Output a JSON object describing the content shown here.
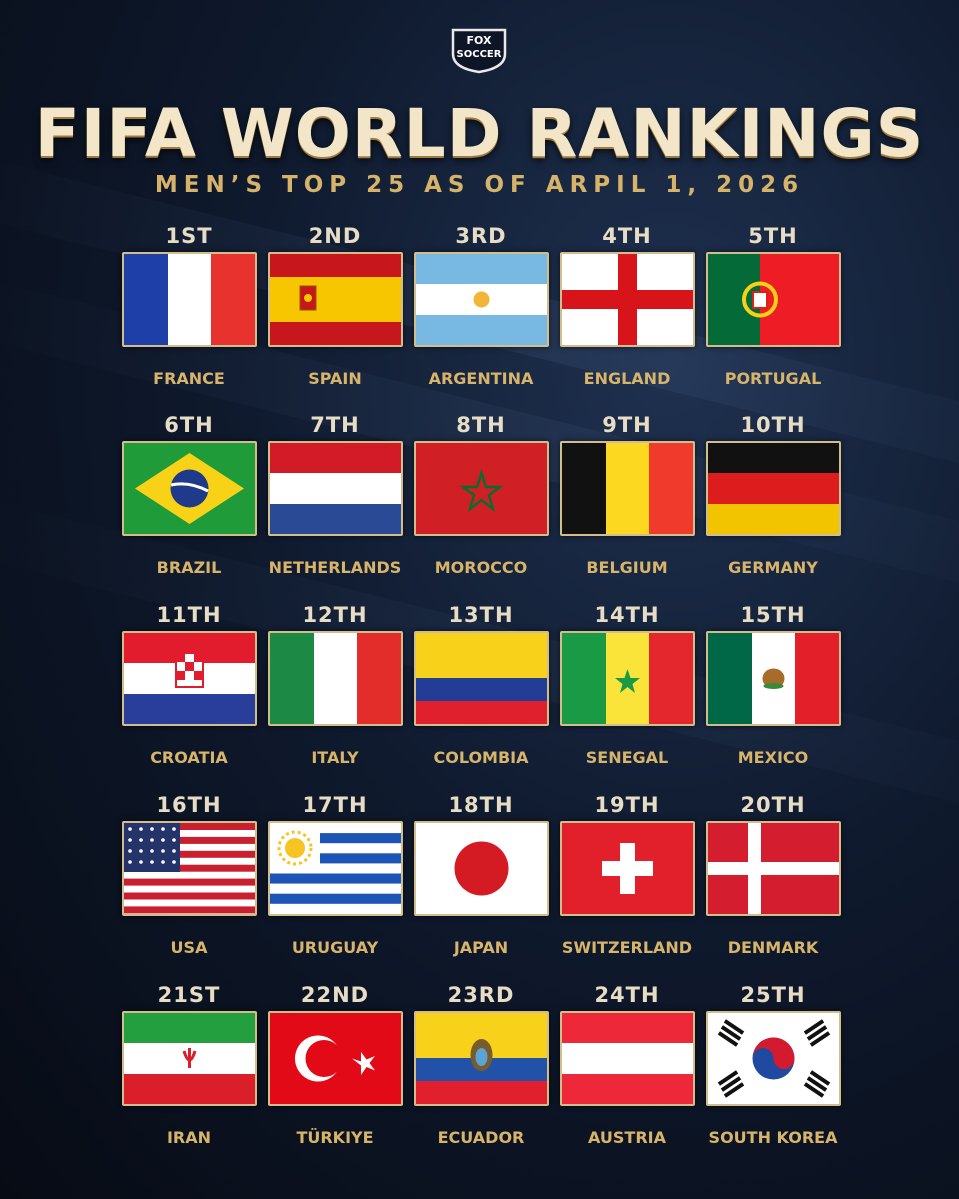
{
  "logo": {
    "line1": "FOX",
    "line2": "SOCCER"
  },
  "title": "FIFA WORLD RANKINGS",
  "subtitle": "MEN’S TOP 25 AS OF ARPIL 1, 2026",
  "rankings": [
    {
      "rank": "1ST",
      "country": "FRANCE",
      "flag": "france"
    },
    {
      "rank": "2ND",
      "country": "SPAIN",
      "flag": "spain"
    },
    {
      "rank": "3RD",
      "country": "ARGENTINA",
      "flag": "argentina"
    },
    {
      "rank": "4TH",
      "country": "ENGLAND",
      "flag": "england"
    },
    {
      "rank": "5TH",
      "country": "PORTUGAL",
      "flag": "portugal"
    },
    {
      "rank": "6TH",
      "country": "BRAZIL",
      "flag": "brazil"
    },
    {
      "rank": "7TH",
      "country": "NETHERLANDS",
      "flag": "netherlands"
    },
    {
      "rank": "8TH",
      "country": "MOROCCO",
      "flag": "morocco"
    },
    {
      "rank": "9TH",
      "country": "BELGIUM",
      "flag": "belgium"
    },
    {
      "rank": "10TH",
      "country": "GERMANY",
      "flag": "germany"
    },
    {
      "rank": "11TH",
      "country": "CROATIA",
      "flag": "croatia"
    },
    {
      "rank": "12TH",
      "country": "ITALY",
      "flag": "italy"
    },
    {
      "rank": "13TH",
      "country": "COLOMBIA",
      "flag": "colombia"
    },
    {
      "rank": "14TH",
      "country": "SENEGAL",
      "flag": "senegal"
    },
    {
      "rank": "15TH",
      "country": "MEXICO",
      "flag": "mexico"
    },
    {
      "rank": "16TH",
      "country": "USA",
      "flag": "usa"
    },
    {
      "rank": "17TH",
      "country": "URUGUAY",
      "flag": "uruguay"
    },
    {
      "rank": "18TH",
      "country": "JAPAN",
      "flag": "japan"
    },
    {
      "rank": "19TH",
      "country": "SWITZERLAND",
      "flag": "switzerland"
    },
    {
      "rank": "20TH",
      "country": "DENMARK",
      "flag": "denmark"
    },
    {
      "rank": "21ST",
      "country": "IRAN",
      "flag": "iran"
    },
    {
      "rank": "22ND",
      "country": "TÜRKIYE",
      "flag": "turkiye"
    },
    {
      "rank": "23RD",
      "country": "ECUADOR",
      "flag": "ecuador"
    },
    {
      "rank": "24TH",
      "country": "AUSTRIA",
      "flag": "austria"
    },
    {
      "rank": "25TH",
      "country": "SOUTH KOREA",
      "flag": "south-korea"
    }
  ]
}
